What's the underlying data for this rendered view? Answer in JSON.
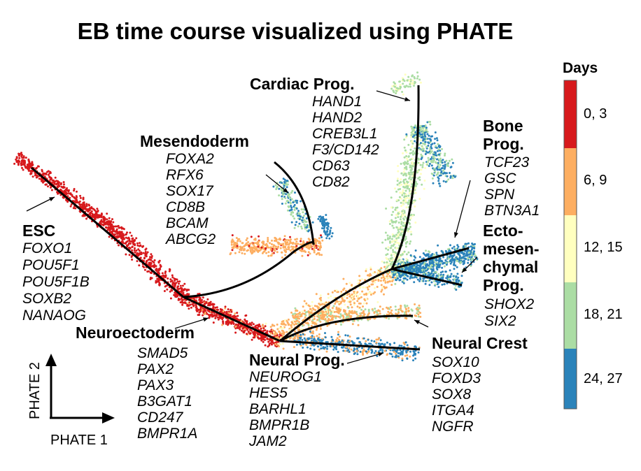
{
  "chart_data": {
    "type": "scatter",
    "title": "EB time course visualized using PHATE",
    "xlabel": "PHATE 1",
    "ylabel": "PHATE 2",
    "legend": {
      "title": "Days",
      "placement": "right",
      "entries": [
        {
          "label": "0, 3",
          "color": "#d7191c"
        },
        {
          "label": "6, 9",
          "color": "#fdae61"
        },
        {
          "label": "12, 15",
          "color": "#ffffbf"
        },
        {
          "label": "18, 21",
          "color": "#abdda4"
        },
        {
          "label": "24, 27",
          "color": "#2b83ba"
        }
      ]
    },
    "annotations": [
      {
        "name": "ESC",
        "genes": [
          "FOXO1",
          "POU5F1",
          "POU5F1B",
          "SOXB2",
          "NANAOG"
        ]
      },
      {
        "name": "Mesendoderm",
        "genes": [
          "FOXA2",
          "RFX6",
          "SOX17",
          "CD8B",
          "BCAM",
          "ABCG2"
        ]
      },
      {
        "name": "Cardiac Prog.",
        "genes": [
          "HAND1",
          "HAND2",
          "CREB3L1",
          "F3/CD142",
          "CD63",
          "CD82"
        ]
      },
      {
        "name_lines": [
          "Bone",
          "Prog."
        ],
        "genes": [
          "TCF23",
          "GSC",
          "SPN",
          "BTN3A1"
        ]
      },
      {
        "name_lines": [
          "Ecto-",
          "mesen-",
          "chymal",
          "Prog."
        ],
        "genes": [
          "SHOX2",
          "SIX2"
        ]
      },
      {
        "name": "Neural Crest",
        "genes": [
          "SOX10",
          "FOXD3",
          "SOX8",
          "ITGA4",
          "NGFR"
        ]
      },
      {
        "name": "Neuroectoderm",
        "genes": [
          "SMAD5",
          "PAX2",
          "PAX3",
          "B3GAT1",
          "CD247",
          "BMPR1A"
        ]
      },
      {
        "name": "Neural Prog.",
        "genes": [
          "NEUROG1",
          "HES5",
          "BARHL1",
          "BMPR1B",
          "JAM2"
        ]
      }
    ]
  }
}
